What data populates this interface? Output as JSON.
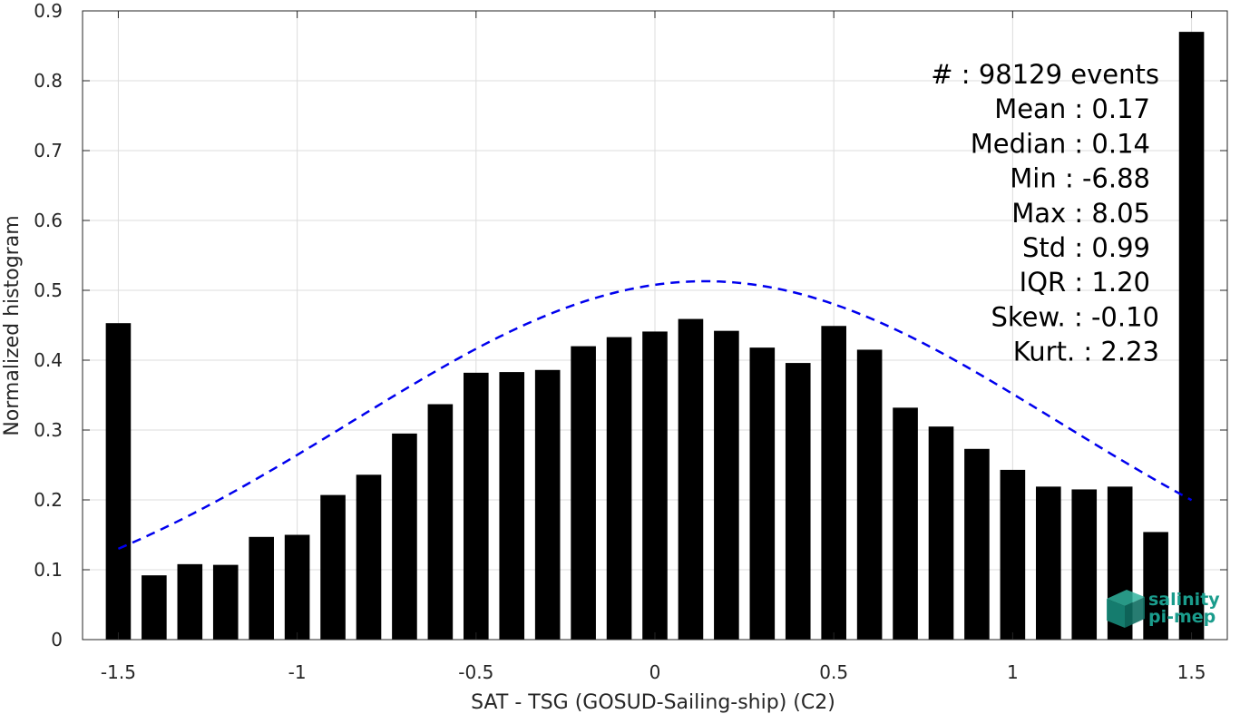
{
  "chart_data": {
    "type": "bar",
    "xlabel": "SAT - TSG (GOSUD-Sailing-ship) (C2)",
    "ylabel": "Normalized histogram",
    "xlim": [
      -1.6,
      1.6
    ],
    "ylim": [
      0,
      0.9
    ],
    "xticks": [
      "-1.5",
      "-1",
      "-0.5",
      "0",
      "0.5",
      "1",
      "1.5"
    ],
    "xtick_values": [
      -1.5,
      -1,
      -0.5,
      0,
      0.5,
      1,
      1.5
    ],
    "yticks": [
      "0",
      "0.1",
      "0.2",
      "0.3",
      "0.4",
      "0.5",
      "0.6",
      "0.7",
      "0.8",
      "0.9"
    ],
    "ytick_values": [
      0,
      0.1,
      0.2,
      0.3,
      0.4,
      0.5,
      0.6,
      0.7,
      0.8,
      0.9
    ],
    "grid": true,
    "bar_color": "#000000",
    "bins": [
      -1.5,
      -1.4,
      -1.3,
      -1.2,
      -1.1,
      -1.0,
      -0.9,
      -0.8,
      -0.7,
      -0.6,
      -0.5,
      -0.4,
      -0.3,
      -0.2,
      -0.1,
      0.0,
      0.1,
      0.2,
      0.3,
      0.4,
      0.5,
      0.6,
      0.7,
      0.8,
      0.9,
      1.0,
      1.1,
      1.2,
      1.3,
      1.4,
      1.5
    ],
    "values": [
      0.453,
      0.092,
      0.108,
      0.107,
      0.147,
      0.15,
      0.207,
      0.236,
      0.295,
      0.337,
      0.382,
      0.383,
      0.386,
      0.42,
      0.433,
      0.441,
      0.459,
      0.442,
      0.418,
      0.396,
      0.449,
      0.415,
      0.332,
      0.305,
      0.273,
      0.243,
      0.219,
      0.215,
      0.219,
      0.154,
      0.87
    ],
    "fit_curve": {
      "style": "dashed",
      "color": "#0000ee",
      "mean": 0.14,
      "std": 0.99,
      "peak": 0.513,
      "x_range": [
        -1.5,
        1.5
      ]
    }
  },
  "stats": [
    {
      "label": "#",
      "sep": " : ",
      "value": "98129 events"
    },
    {
      "label": "Mean",
      "sep": " : ",
      "value": "0.17"
    },
    {
      "label": "Median",
      "sep": " : ",
      "value": "0.14"
    },
    {
      "label": "Min",
      "sep": " : ",
      "value": "-6.88"
    },
    {
      "label": "Max",
      "sep": " : ",
      "value": "8.05"
    },
    {
      "label": "Std",
      "sep": " : ",
      "value": "0.99"
    },
    {
      "label": "IQR",
      "sep": " : ",
      "value": "1.20"
    },
    {
      "label": "Skew.",
      "sep": " : ",
      "value": "-0.10"
    },
    {
      "label": "Kurt.",
      "sep": " : ",
      "value": "2.23"
    }
  ],
  "logo": {
    "line1": "salinity",
    "line2": "pi-mep",
    "color": "#1a9c8c"
  }
}
